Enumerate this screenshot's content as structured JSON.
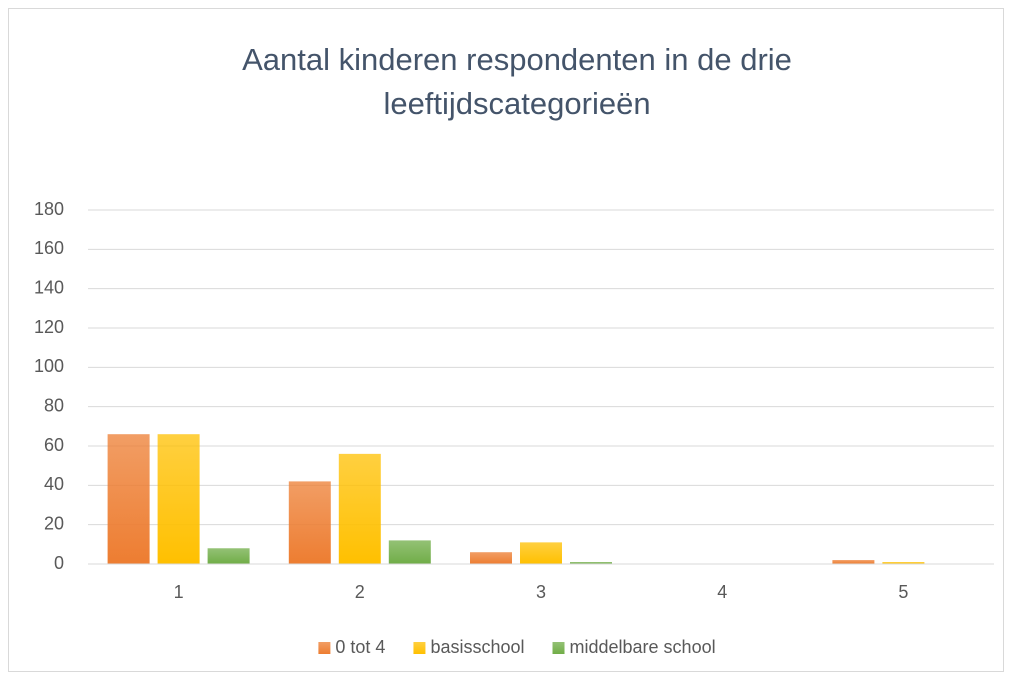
{
  "chart_data": {
    "type": "bar",
    "title": "Aantal kinderen respondenten in de drie leeftijdscategorieën",
    "categories": [
      "1",
      "2",
      "3",
      "4",
      "5"
    ],
    "series": [
      {
        "name": "0 tot 4",
        "color": "#ed7d31",
        "values": [
          66,
          42,
          6,
          0,
          2
        ]
      },
      {
        "name": "basisschool",
        "color": "#ffc000",
        "values": [
          66,
          56,
          11,
          0,
          1
        ]
      },
      {
        "name": "middelbare school",
        "color": "#70ad47",
        "values": [
          8,
          12,
          1,
          0,
          0
        ]
      }
    ],
    "ylim": [
      0,
      180
    ],
    "yticks": [
      0,
      20,
      40,
      60,
      80,
      100,
      120,
      140,
      160,
      180
    ],
    "grid": true,
    "legend": "bottom"
  }
}
